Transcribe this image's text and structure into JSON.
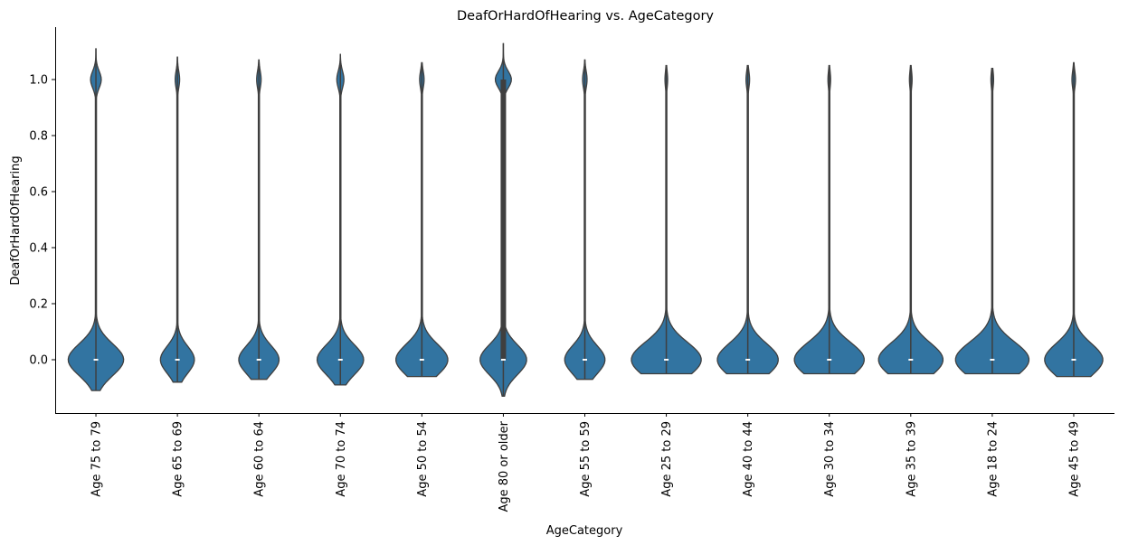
{
  "chart_data": {
    "type": "violin",
    "title": "DeafOrHardOfHearing vs. AgeCategory",
    "xlabel": "AgeCategory",
    "ylabel": "DeafOrHardOfHearing",
    "ylim": [
      -0.18,
      1.18
    ],
    "yticks": [
      "0.0",
      "0.2",
      "0.4",
      "0.6",
      "0.8",
      "1.0"
    ],
    "grid": false,
    "legend": "none",
    "color": "#3274a1",
    "categories": [
      "Age 75 to 79",
      "Age 65 to 69",
      "Age 60 to 64",
      "Age 70 to 74",
      "Age 50 to 54",
      "Age 80 or older",
      "Age 55 to 59",
      "Age 25 to 29",
      "Age 40 to 44",
      "Age 30 to 34",
      "Age 35 to 39",
      "Age 18 to 24",
      "Age 45 to 49"
    ],
    "violins": [
      {
        "category": "Age 75 to 79",
        "min": -0.11,
        "max": 1.11,
        "width0": 0.62,
        "width1": 0.12,
        "median": 0.0
      },
      {
        "category": "Age 65 to 69",
        "min": -0.08,
        "max": 1.08,
        "width0": 0.38,
        "width1": 0.05,
        "median": 0.0
      },
      {
        "category": "Age 60 to 64",
        "min": -0.07,
        "max": 1.07,
        "width0": 0.45,
        "width1": 0.05,
        "median": 0.0
      },
      {
        "category": "Age 70 to 74",
        "min": -0.09,
        "max": 1.09,
        "width0": 0.52,
        "width1": 0.08,
        "median": 0.0
      },
      {
        "category": "Age 50 to 54",
        "min": -0.06,
        "max": 1.06,
        "width0": 0.58,
        "width1": 0.05,
        "median": 0.0
      },
      {
        "category": "Age 80 or older",
        "min": -0.13,
        "max": 1.13,
        "width0": 0.52,
        "width1": 0.18,
        "median": 0.0,
        "iqr": [
          0.0,
          1.0
        ]
      },
      {
        "category": "Age 55 to 59",
        "min": -0.07,
        "max": 1.07,
        "width0": 0.45,
        "width1": 0.05,
        "median": 0.0
      },
      {
        "category": "Age 25 to 29",
        "min": -0.05,
        "max": 1.05,
        "width0": 0.78,
        "width1": 0.03,
        "median": 0.0
      },
      {
        "category": "Age 40 to 44",
        "min": -0.05,
        "max": 1.05,
        "width0": 0.68,
        "width1": 0.04,
        "median": 0.0
      },
      {
        "category": "Age 30 to 34",
        "min": -0.05,
        "max": 1.05,
        "width0": 0.78,
        "width1": 0.03,
        "median": 0.0
      },
      {
        "category": "Age 35 to 39",
        "min": -0.05,
        "max": 1.05,
        "width0": 0.72,
        "width1": 0.03,
        "median": 0.0
      },
      {
        "category": "Age 18 to 24",
        "min": -0.05,
        "max": 1.04,
        "width0": 0.82,
        "width1": 0.03,
        "median": 0.0
      },
      {
        "category": "Age 45 to 49",
        "min": -0.06,
        "max": 1.06,
        "width0": 0.65,
        "width1": 0.04,
        "median": 0.0
      }
    ]
  }
}
